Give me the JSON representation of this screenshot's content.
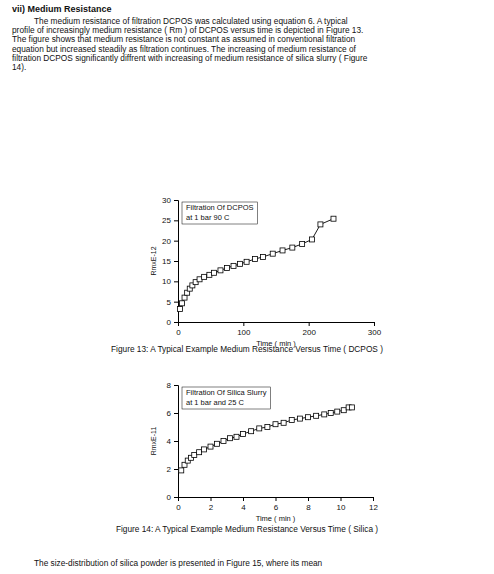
{
  "document": {
    "heading": "vii) Medium Resistance",
    "paragraph": [
      "The medium resistance of filtration DCPOS was calculated using equation 6. A typical",
      "profile of increasingly medium resistance ( Rm ) of DCPOS versus time is depicted in Figure 13.",
      "The figure shows that medium resistance is not constant as assumed in conventional filtration",
      "equation but increased steadily as filtration continues. The increasing of medium resistance of",
      "filtration DCPOS significantly diffrent with increasing of medium resistance of silica slurry ( Figure",
      "14)."
    ],
    "captions": [
      "Figure 13: A Typical Example Medium Resistance Versus Time ( DCPOS )",
      "Figure 14: A Typical Example Medium Resistance Versus Time ( Silica )"
    ],
    "trailing_text": "The size-distribution of silica powder is presented in Figure 15, where its mean"
  },
  "chart_data": [
    {
      "type": "line",
      "title": "Filtration Of DCPOS",
      "subtitle": "at 1 bar 90 C",
      "x_label": "Time ( min )",
      "y_label": "RmxE-12",
      "x": [
        3,
        6,
        10,
        14,
        18,
        22,
        27,
        33,
        40,
        48,
        55,
        65,
        75,
        85,
        95,
        105,
        118,
        130,
        145,
        160,
        175,
        190,
        205,
        218,
        238
      ],
      "series": [
        {
          "color": "#000000",
          "marker": "square",
          "values": [
            3.2,
            4.6,
            6.0,
            7.2,
            8.2,
            9.0,
            9.8,
            10.5,
            11.1,
            11.6,
            12.1,
            12.7,
            13.3,
            13.8,
            14.3,
            14.8,
            15.5,
            16.0,
            16.8,
            17.6,
            18.3,
            19.2,
            20.3,
            24.0,
            25.4
          ]
        }
      ],
      "xlim": [
        0,
        300
      ],
      "xticks": [
        0,
        100,
        200,
        300
      ],
      "ylim": [
        0,
        30
      ],
      "yticks": [
        0,
        5,
        10,
        15,
        20,
        25,
        30
      ],
      "grid": false
    },
    {
      "type": "line",
      "title": "Filtration Of Silica Slurry",
      "subtitle": "at 1 bar and 25 C",
      "x_label": "Time ( min )",
      "y_label": "RmxE-11",
      "x": [
        0.2,
        0.4,
        0.6,
        0.8,
        1.0,
        1.3,
        1.6,
        2.0,
        2.4,
        2.8,
        3.2,
        3.6,
        4.0,
        4.5,
        5.0,
        5.5,
        6.0,
        6.5,
        7.0,
        7.5,
        8.0,
        8.5,
        9.0,
        9.4,
        9.8,
        10.2,
        10.5,
        10.7
      ],
      "series": [
        {
          "color": "#000000",
          "marker": "square",
          "values": [
            1.9,
            2.3,
            2.6,
            2.8,
            3.0,
            3.2,
            3.4,
            3.6,
            3.8,
            4.0,
            4.2,
            4.3,
            4.5,
            4.7,
            4.9,
            5.0,
            5.2,
            5.3,
            5.5,
            5.6,
            5.7,
            5.8,
            5.9,
            6.0,
            6.1,
            6.2,
            6.4,
            6.4
          ]
        }
      ],
      "xlim": [
        0,
        12
      ],
      "xticks": [
        0,
        2,
        4,
        6,
        8,
        10,
        12
      ],
      "ylim": [
        0,
        8
      ],
      "yticks": [
        0,
        2,
        4,
        6,
        8
      ],
      "grid": false
    }
  ]
}
